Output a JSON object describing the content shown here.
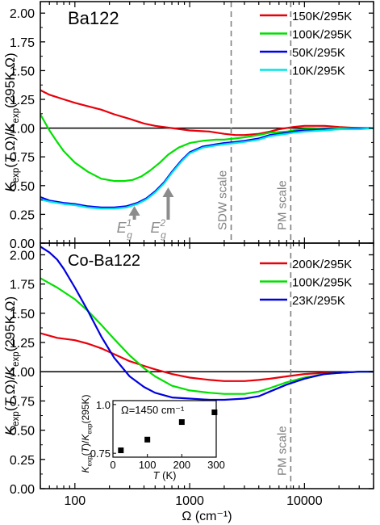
{
  "chart_data": [
    {
      "type": "line",
      "panel_label": "Ba122",
      "x_scale": "log",
      "xlim": [
        50,
        40000
      ],
      "ylim": [
        0.0,
        2.1
      ],
      "yticks": [
        "0.00",
        "0.25",
        "0.50",
        "0.75",
        "1.00",
        "1.25",
        "1.50",
        "1.75",
        "2.00"
      ],
      "ylabel": {
        "main": "K",
        "sub1": "exp",
        "mid": "(T,Ω)/K",
        "sub2": "exp",
        "tail": "(295K,Ω)"
      },
      "reference_line": 1.0,
      "legend_position": "top-right",
      "series": [
        {
          "name": "150K/295K",
          "color": "#e8000b",
          "x": [
            50,
            60,
            80,
            100,
            130,
            170,
            220,
            300,
            400,
            500,
            700,
            1000,
            1500,
            2000,
            2500,
            3000,
            4000,
            5000,
            6000,
            8000,
            10000,
            15000,
            20000,
            30000,
            40000
          ],
          "y": [
            1.33,
            1.29,
            1.25,
            1.22,
            1.19,
            1.16,
            1.12,
            1.08,
            1.04,
            1.02,
            1.0,
            0.98,
            0.97,
            0.95,
            0.94,
            0.94,
            0.95,
            0.97,
            0.99,
            1.01,
            1.02,
            1.02,
            1.01,
            1.0,
            1.0
          ]
        },
        {
          "name": "100K/295K",
          "color": "#00e000",
          "x": [
            50,
            60,
            70,
            80,
            100,
            130,
            170,
            220,
            270,
            320,
            380,
            450,
            550,
            650,
            800,
            1000,
            1300,
            1700,
            2000,
            2500,
            3000,
            4000,
            5000,
            7000,
            8000,
            10000,
            15000,
            20000,
            30000,
            40000
          ],
          "y": [
            1.12,
            0.98,
            0.88,
            0.8,
            0.7,
            0.62,
            0.56,
            0.54,
            0.54,
            0.55,
            0.58,
            0.63,
            0.7,
            0.77,
            0.83,
            0.87,
            0.89,
            0.9,
            0.9,
            0.91,
            0.92,
            0.94,
            0.96,
            0.97,
            0.98,
            0.99,
            1.0,
            1.0,
            1.0,
            1.0
          ]
        },
        {
          "name": "50K/295K",
          "color": "#0000ee",
          "x": [
            50,
            60,
            80,
            100,
            130,
            170,
            220,
            280,
            350,
            420,
            500,
            600,
            700,
            850,
            1000,
            1300,
            1700,
            2000,
            2500,
            3000,
            4000,
            5000,
            7000,
            8000,
            10000,
            15000,
            20000,
            30000,
            40000
          ],
          "y": [
            0.4,
            0.37,
            0.35,
            0.34,
            0.32,
            0.31,
            0.31,
            0.32,
            0.35,
            0.39,
            0.45,
            0.53,
            0.62,
            0.72,
            0.79,
            0.84,
            0.86,
            0.87,
            0.88,
            0.89,
            0.91,
            0.94,
            0.96,
            0.97,
            0.98,
            0.99,
            0.99,
            1.0,
            1.0
          ]
        },
        {
          "name": "10K/295K",
          "color": "#00e5e5",
          "x": [
            50,
            60,
            80,
            100,
            130,
            170,
            220,
            280,
            350,
            420,
            500,
            600,
            700,
            850,
            1000,
            1300,
            1700,
            2000,
            2500,
            3000,
            4000,
            5000,
            7000,
            8000,
            10000,
            15000,
            20000,
            30000,
            40000
          ],
          "y": [
            0.38,
            0.36,
            0.34,
            0.33,
            0.31,
            0.3,
            0.3,
            0.31,
            0.34,
            0.38,
            0.44,
            0.52,
            0.61,
            0.71,
            0.78,
            0.83,
            0.85,
            0.86,
            0.87,
            0.88,
            0.9,
            0.93,
            0.95,
            0.96,
            0.97,
            0.98,
            0.99,
            0.99,
            1.0
          ]
        }
      ],
      "vlines": [
        {
          "x": 2300,
          "label": "SDW scale"
        },
        {
          "x": 7600,
          "label": "PM scale"
        }
      ],
      "arrows": [
        {
          "x": 330,
          "y_tip": 0.32,
          "label": "E",
          "sup": "1",
          "sub": "g"
        },
        {
          "x": 650,
          "y_tip": 0.53,
          "label": "E",
          "sup": "2",
          "sub": "g"
        }
      ]
    },
    {
      "type": "line",
      "panel_label": "Co-Ba122",
      "x_scale": "log",
      "xlim": [
        50,
        40000
      ],
      "ylim": [
        0.0,
        2.1
      ],
      "yticks": [
        "0.00",
        "0.25",
        "0.50",
        "0.75",
        "1.00",
        "1.25",
        "1.50",
        "1.75",
        "2.00"
      ],
      "ylabel": {
        "main": "K",
        "sub1": "exp",
        "mid": "(T,Ω)/K",
        "sub2": "exp",
        "tail": "(295K,Ω)"
      },
      "xlabel": "Ω (cm⁻¹)",
      "xticks": [
        {
          "value": 100,
          "label": "100"
        },
        {
          "value": 1000,
          "label": "1000"
        },
        {
          "value": 10000,
          "label": "10000"
        }
      ],
      "reference_line": 1.0,
      "legend_position": "top-right",
      "series": [
        {
          "name": "200K/295K",
          "color": "#e8000b",
          "x": [
            50,
            70,
            100,
            130,
            170,
            220,
            300,
            400,
            500,
            700,
            1000,
            1500,
            2000,
            3000,
            4000,
            5000,
            7000,
            10000,
            15000,
            20000,
            30000,
            40000
          ],
          "y": [
            1.33,
            1.29,
            1.27,
            1.24,
            1.2,
            1.15,
            1.09,
            1.05,
            1.02,
            0.98,
            0.95,
            0.93,
            0.92,
            0.92,
            0.93,
            0.94,
            0.96,
            0.98,
            0.99,
            0.99,
            1.0,
            1.0
          ]
        },
        {
          "name": "100K/295K",
          "color": "#00e000",
          "x": [
            50,
            70,
            100,
            130,
            170,
            220,
            300,
            400,
            500,
            700,
            1000,
            1500,
            2000,
            3000,
            4000,
            5000,
            7000,
            10000,
            15000,
            20000,
            30000,
            40000
          ],
          "y": [
            1.8,
            1.72,
            1.62,
            1.52,
            1.4,
            1.28,
            1.14,
            1.03,
            0.96,
            0.88,
            0.84,
            0.82,
            0.81,
            0.81,
            0.83,
            0.86,
            0.91,
            0.95,
            0.98,
            0.99,
            1.0,
            1.0
          ]
        },
        {
          "name": "23K/295K",
          "color": "#0000dd",
          "x": [
            50,
            60,
            70,
            80,
            100,
            130,
            170,
            220,
            300,
            400,
            500,
            700,
            1000,
            1500,
            2000,
            3000,
            4000,
            5000,
            7000,
            10000,
            15000,
            20000,
            30000,
            40000
          ],
          "y": [
            2.07,
            2.02,
            1.96,
            1.88,
            1.72,
            1.52,
            1.3,
            1.12,
            0.96,
            0.87,
            0.82,
            0.78,
            0.77,
            0.76,
            0.76,
            0.77,
            0.79,
            0.83,
            0.89,
            0.94,
            0.98,
            0.99,
            1.0,
            1.0
          ]
        }
      ],
      "vlines": [
        {
          "x": 7600,
          "label": "PM scale"
        }
      ],
      "inset": {
        "type": "scatter",
        "annotation": "Ω=1450 cm⁻¹",
        "xlabel": "T (K)",
        "ylabel": {
          "main": "K",
          "sub1": "exp",
          "mid": "(T)/K",
          "sub2": "exp",
          "tail": "(295K)"
        },
        "xlim": [
          0,
          300
        ],
        "ylim": [
          0.73,
          1.02
        ],
        "xticks": [
          0,
          100,
          200,
          300
        ],
        "yticks": [
          {
            "value": 0.75,
            "label": "0.75"
          },
          {
            "value": 1.0,
            "label": "1.0"
          }
        ],
        "x": [
          23,
          100,
          200,
          295
        ],
        "y": [
          0.765,
          0.82,
          0.91,
          0.96
        ],
        "color": "#000000"
      }
    }
  ]
}
